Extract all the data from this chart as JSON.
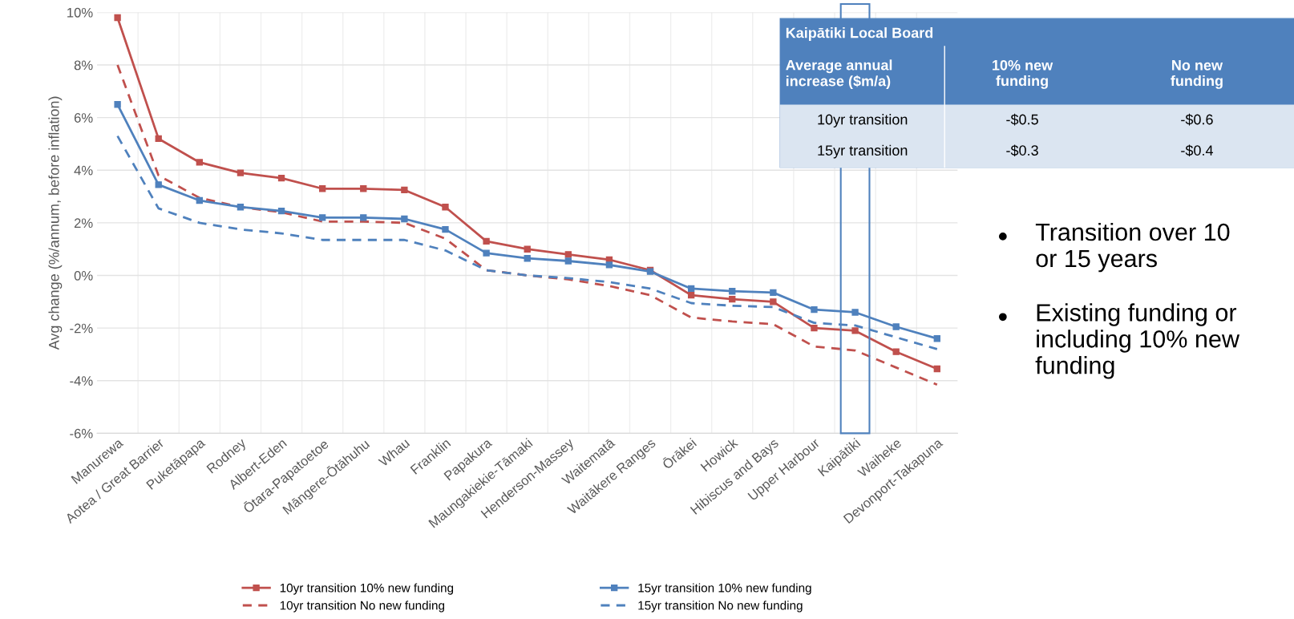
{
  "chart_data": {
    "type": "line",
    "ylabel": "Avg change (%/annum, before inflation)",
    "categories": [
      "Manurewa",
      "Aotea / Great Barrier",
      "Puketāpapa",
      "Rodney",
      "Albert-Eden",
      "Ōtara-Papatoetoe",
      "Māngere-Ōtāhuhu",
      "Whau",
      "Franklin",
      "Papakura",
      "Maungakiekie-Tāmaki",
      "Henderson-Massey",
      "Waitematā",
      "Waitākere Ranges",
      "Ōrākei",
      "Howick",
      "Hibiscus and Bays",
      "Upper Harbour",
      "Kaipātiki",
      "Waiheke",
      "Devonport-Takapuna"
    ],
    "series": [
      {
        "name": "10yr transition 10% new funding",
        "color": "#c0504d",
        "marker": "square",
        "line_style": "solid",
        "values": [
          9.8,
          5.2,
          4.3,
          3.9,
          3.7,
          3.3,
          3.3,
          3.25,
          2.6,
          1.3,
          1.0,
          0.8,
          0.6,
          0.2,
          -0.75,
          -0.9,
          -1.0,
          -2.0,
          -2.1,
          -2.9,
          -3.55
        ]
      },
      {
        "name": "10yr transition No new funding",
        "color": "#c0504d",
        "marker": "none",
        "line_style": "dashed",
        "values": [
          8.0,
          3.8,
          2.95,
          2.6,
          2.4,
          2.05,
          2.05,
          2.0,
          1.4,
          0.2,
          0.0,
          -0.15,
          -0.4,
          -0.75,
          -1.6,
          -1.75,
          -1.85,
          -2.7,
          -2.85,
          -3.5,
          -4.15
        ]
      },
      {
        "name": "15yr transition 10% new funding",
        "color": "#4f81bd",
        "marker": "square",
        "line_style": "solid",
        "values": [
          6.5,
          3.45,
          2.85,
          2.6,
          2.45,
          2.2,
          2.2,
          2.15,
          1.75,
          0.85,
          0.65,
          0.55,
          0.4,
          0.15,
          -0.5,
          -0.6,
          -0.65,
          -1.3,
          -1.4,
          -1.95,
          -2.4
        ]
      },
      {
        "name": "15yr transition No new funding",
        "color": "#4f81bd",
        "marker": "none",
        "line_style": "dashed",
        "values": [
          5.3,
          2.55,
          2.0,
          1.75,
          1.6,
          1.35,
          1.35,
          1.35,
          0.95,
          0.2,
          0.0,
          -0.1,
          -0.25,
          -0.5,
          -1.05,
          -1.15,
          -1.2,
          -1.8,
          -1.9,
          -2.35,
          -2.8
        ]
      }
    ],
    "ylim": [
      -6,
      10
    ],
    "yticks": [
      {
        "value": -6,
        "label": "-6%"
      },
      {
        "value": -4,
        "label": "-4%"
      },
      {
        "value": -2,
        "label": "-2%"
      },
      {
        "value": 0,
        "label": "0%"
      },
      {
        "value": 2,
        "label": "2%"
      },
      {
        "value": 4,
        "label": "4%"
      },
      {
        "value": 6,
        "label": "6%"
      },
      {
        "value": 8,
        "label": "8%"
      },
      {
        "value": 10,
        "label": "10%"
      }
    ],
    "grid": true,
    "legend": "bottom",
    "annotations": [
      "Kaipātiki Local Board",
      "Average annual increase ($m/a)",
      "10% new funding",
      "No new funding",
      "10yr transition",
      "-$0.5",
      "-$0.6",
      "15yr transition",
      "-$0.3",
      "-$0.4",
      "Transition over 10 or 15 years",
      "Existing funding or including 10% new funding"
    ]
  }
}
